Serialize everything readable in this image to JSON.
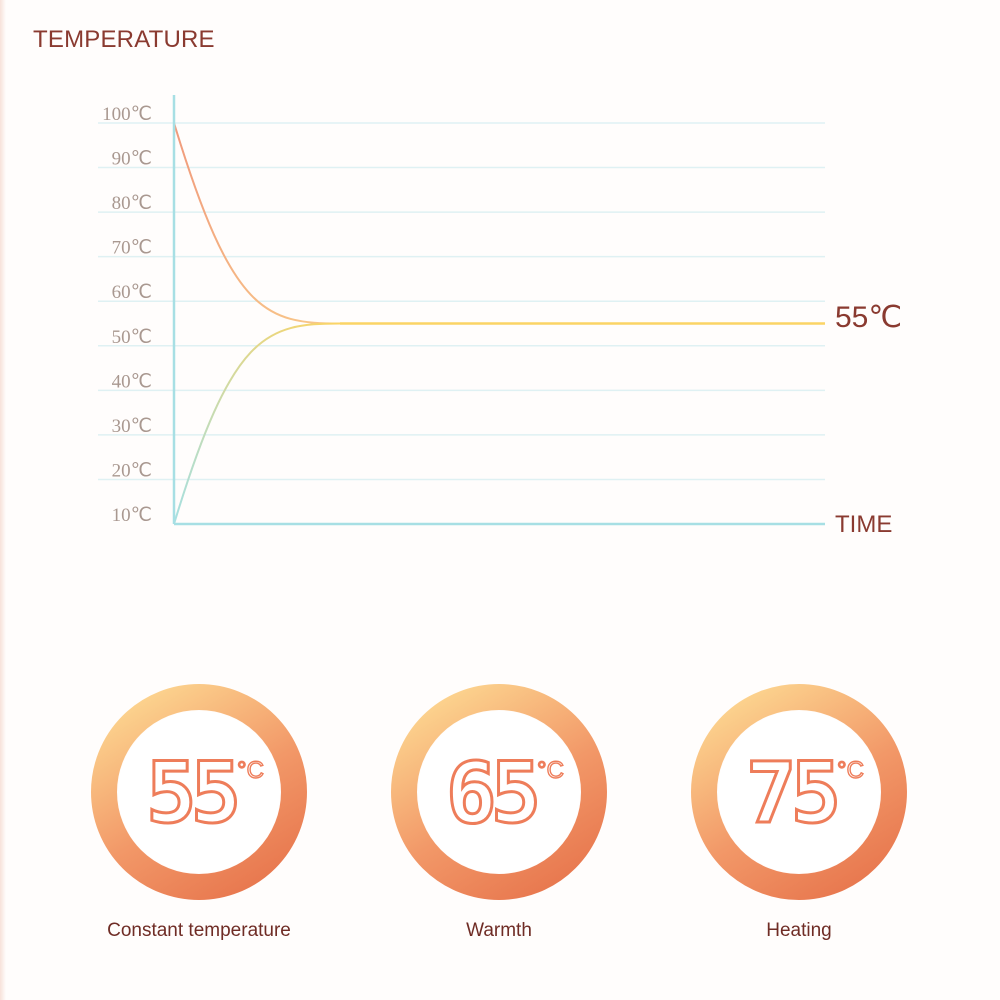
{
  "chart_data": {
    "type": "line",
    "title": "TEMPERATURE",
    "xlabel": "TIME",
    "ylabel": "",
    "y_ticks": [
      "100℃",
      "90℃",
      "80℃",
      "70℃",
      "60℃",
      "50℃",
      "40℃",
      "30℃",
      "20℃",
      "10℃"
    ],
    "ylim": [
      10,
      100
    ],
    "grid": true,
    "end_label": "55℃",
    "series": [
      {
        "color": "#f2a07f",
        "values": [
          100,
          80,
          66,
          58,
          55,
          55,
          55,
          55,
          55
        ]
      },
      {
        "color": "#9fdde0",
        "values": [
          10,
          30,
          44,
          52,
          55,
          55,
          55,
          55,
          55
        ]
      }
    ],
    "steady_color": "#fbd465"
  },
  "modes": [
    {
      "value": "55",
      "unit": "°C",
      "label": "Constant temperature"
    },
    {
      "value": "65",
      "unit": "°C",
      "label": "Warmth"
    },
    {
      "value": "75",
      "unit": "°C",
      "label": "Heating"
    }
  ],
  "colors": {
    "accent": "#ee7d5a",
    "ring_light": "#fcd38e",
    "ring_dark": "#e8784f",
    "text_dark": "#8a3a30"
  }
}
